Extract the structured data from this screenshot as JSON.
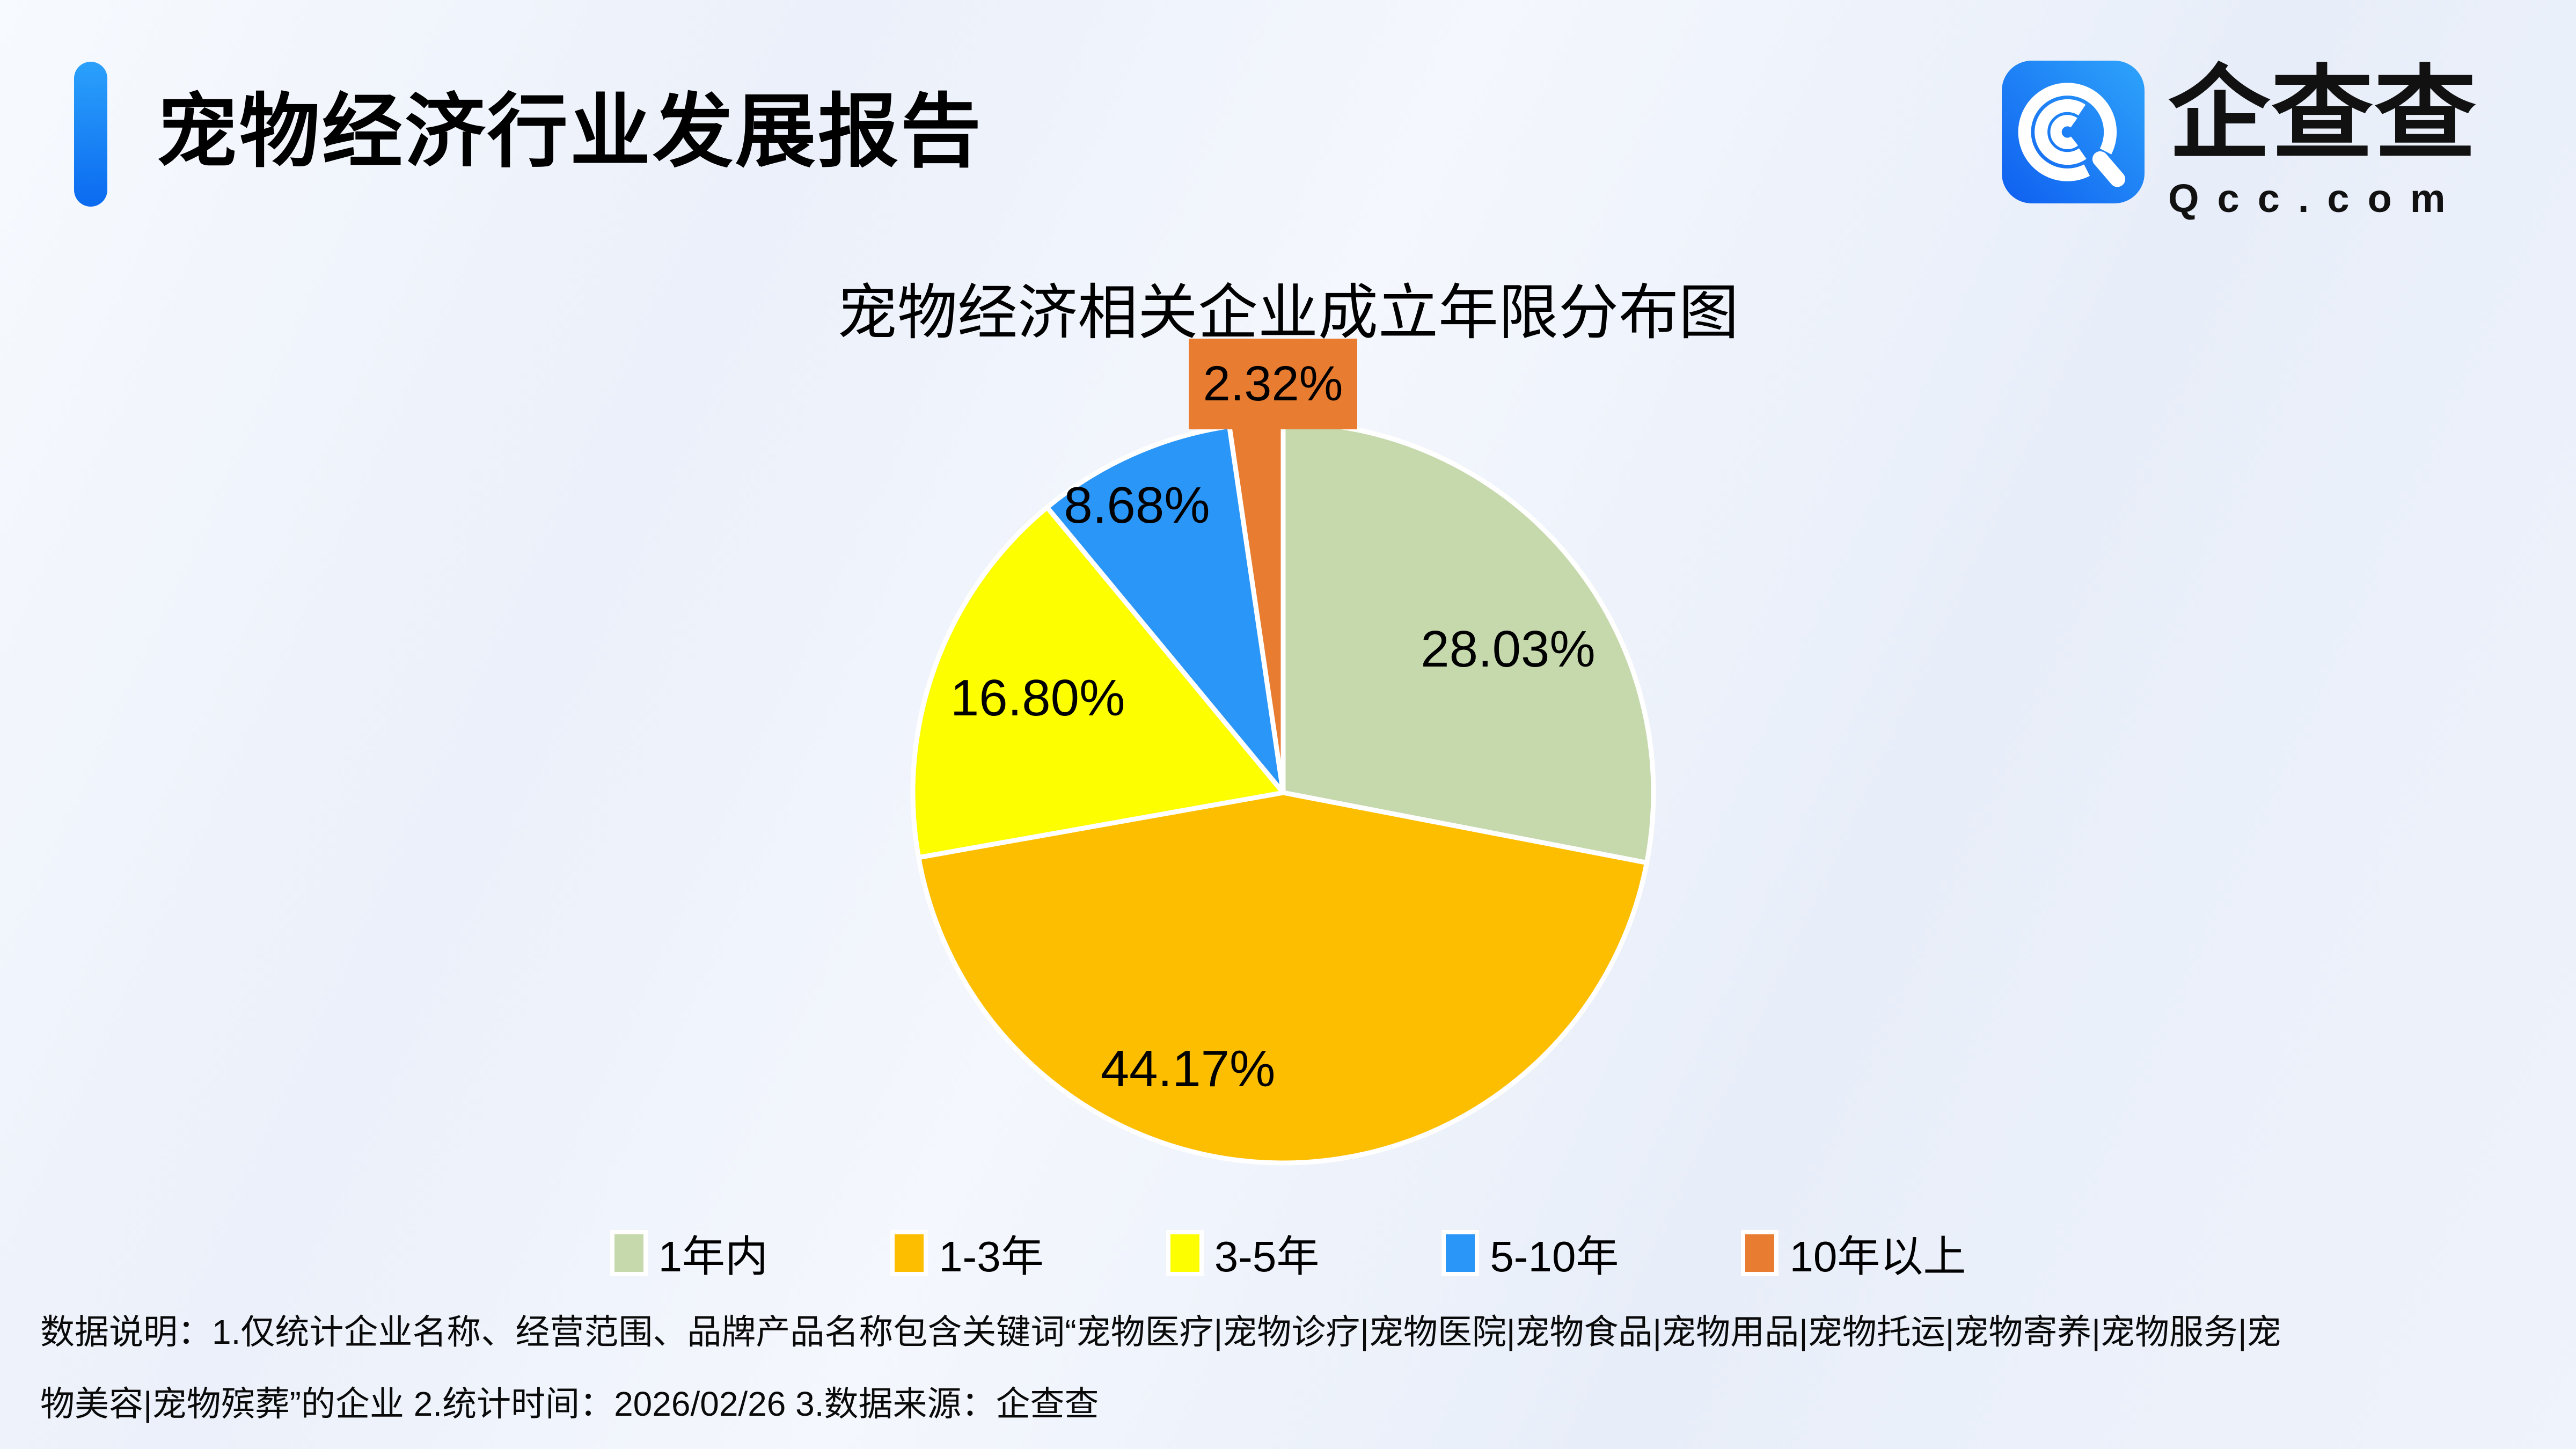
{
  "header": {
    "title": "宠物经济行业发展报告",
    "accent_color": "#1a7af8"
  },
  "logo": {
    "name": "企查查",
    "domain": "Qcc.com",
    "icon": "qcc-magnifier-icon",
    "brand_gradient": [
      "#2ea4fb",
      "#0f5ff0"
    ]
  },
  "chart_data": {
    "type": "pie",
    "title": "宠物经济相关企业成立年限分布图",
    "categories": [
      "1年内",
      "1-3年",
      "3-5年",
      "5-10年",
      "10年以上"
    ],
    "values": [
      28.03,
      44.17,
      16.8,
      8.68,
      2.32
    ],
    "unit": "%",
    "colors": [
      "#c6d9ac",
      "#fdbe00",
      "#fdff00",
      "#2a96f7",
      "#e87c30"
    ],
    "layout": {
      "start_angle_deg": 0,
      "direction": "clockwise",
      "legend_position": "bottom",
      "label_color": "#000000",
      "slice_gap_color": "#ffffff",
      "label_hints": [
        {
          "angle": 57.5,
          "dist": 0.72
        },
        {
          "angle": 199,
          "dist": 0.79
        },
        {
          "angle": 291,
          "dist": 0.71
        },
        {
          "angle": 333,
          "dist": 0.87
        },
        {
          "angle": null,
          "dist": null
        }
      ],
      "callout_index": 4
    }
  },
  "footer": {
    "line1": "数据说明：1.仅统计企业名称、经营范围、品牌产品名称包含关键词“宠物医疗|宠物诊疗|宠物医院|宠物食品|宠物用品|宠物托运|宠物寄养|宠物服务|宠",
    "line2": "物美容|宠物殡葬”的企业  2.统计时间：2026/02/26  3.数据来源：企查查"
  }
}
